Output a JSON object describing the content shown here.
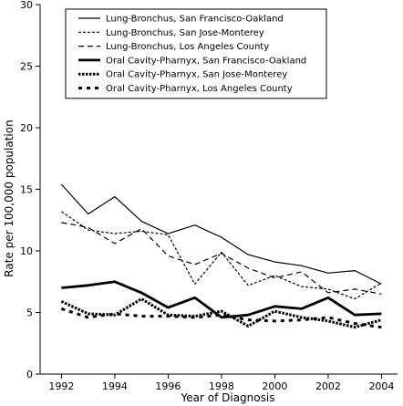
{
  "chart_data": {
    "type": "line",
    "xlabel": "Year of Diagnosis",
    "ylabel": "Rate per 100,000 population",
    "xlim": [
      1991.2,
      2004.6
    ],
    "ylim": [
      0,
      30
    ],
    "x_ticks": [
      1992,
      1994,
      1996,
      1998,
      2000,
      2002,
      2004
    ],
    "y_ticks": [
      0,
      5,
      10,
      15,
      20,
      25,
      30
    ],
    "legend_position": "top-right",
    "x": [
      1992,
      1993,
      1994,
      1995,
      1996,
      1997,
      1998,
      1999,
      2000,
      2001,
      2002,
      2003,
      2004
    ],
    "series": [
      {
        "name": "Lung-Bronchus, San Francisco-Oakland",
        "style": "thin-solid",
        "values": [
          15.4,
          13.0,
          14.4,
          12.4,
          11.4,
          12.1,
          11.1,
          9.7,
          9.1,
          8.8,
          8.2,
          8.4,
          7.3
        ]
      },
      {
        "name": "Lung-Bronchus, San Jose-Monterey",
        "style": "thin-short-dash",
        "values": [
          13.2,
          11.7,
          11.4,
          11.6,
          11.3,
          7.3,
          9.9,
          7.2,
          8.0,
          7.1,
          6.9,
          6.1,
          7.4
        ]
      },
      {
        "name": "Lung-Bronchus, Los Angeles County",
        "style": "thin-long-dash",
        "values": [
          12.3,
          11.9,
          10.6,
          11.8,
          9.6,
          8.9,
          9.8,
          8.6,
          7.8,
          8.3,
          6.6,
          6.9,
          6.5
        ]
      },
      {
        "name": "Oral Cavity-Pharnyx, San Francisco-Oakland",
        "style": "thick-solid",
        "values": [
          7.0,
          7.2,
          7.5,
          6.6,
          5.4,
          6.2,
          4.6,
          4.8,
          5.5,
          5.3,
          6.2,
          4.8,
          4.9
        ]
      },
      {
        "name": "Oral Cavity-Pharnyx, San Jose-Monterey",
        "style": "thick-short-dash",
        "values": [
          5.9,
          4.9,
          4.8,
          6.1,
          4.8,
          4.7,
          5.1,
          3.9,
          5.1,
          4.6,
          4.3,
          3.8,
          4.4
        ]
      },
      {
        "name": "Oral Cavity-Pharnyx, Los Angeles County",
        "style": "thick-long-dash",
        "values": [
          5.3,
          4.6,
          4.9,
          4.7,
          4.7,
          4.6,
          4.8,
          4.4,
          4.3,
          4.4,
          4.6,
          4.1,
          3.8
        ]
      }
    ]
  }
}
